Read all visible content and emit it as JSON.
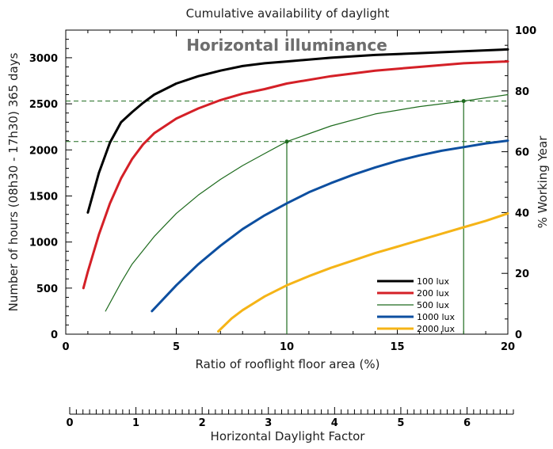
{
  "chart_data": {
    "type": "line",
    "title": "Cumulative availability of daylight",
    "annotation": "Horizontal illuminance",
    "xlabel": "Ratio of rooflight floor area (%)",
    "ylabel_left": "Number of hours (08h30 - 17h30) 365 days",
    "ylabel_right": "% Working Year",
    "secondary_xlabel": "Horizontal Daylight Factor",
    "xlim": [
      0,
      20
    ],
    "ylim_left": [
      0,
      3300
    ],
    "ylim_right": [
      0,
      100
    ],
    "secondary_xlim": [
      0,
      6.7
    ],
    "x_ticks": [
      "0",
      "5",
      "10",
      "15",
      "20"
    ],
    "y_ticks_left": [
      "0",
      "500",
      "1000",
      "1500",
      "2000",
      "2500",
      "3000"
    ],
    "y_ticks_right": [
      "0",
      "20",
      "40",
      "60",
      "80",
      "100"
    ],
    "secondary_x_ticks": [
      "0",
      "1",
      "2",
      "3",
      "4",
      "5",
      "6"
    ],
    "grid": false,
    "legend_position": "lower-right",
    "series": [
      {
        "name": "100 lux",
        "color": "#000000",
        "width": 3,
        "x": [
          1,
          1.5,
          2,
          2.5,
          3,
          3.5,
          4,
          5,
          6,
          7,
          8,
          9,
          10,
          12,
          14,
          16,
          18,
          20
        ],
        "y": [
          1320,
          1750,
          2080,
          2300,
          2410,
          2510,
          2600,
          2720,
          2800,
          2860,
          2910,
          2940,
          2960,
          3000,
          3030,
          3050,
          3070,
          3090
        ]
      },
      {
        "name": "200 lux",
        "color": "#d42027",
        "width": 3,
        "x": [
          0.8,
          1,
          1.5,
          2,
          2.5,
          3,
          3.5,
          4,
          5,
          6,
          7,
          8,
          9,
          10,
          12,
          14,
          16,
          18,
          20
        ],
        "y": [
          500,
          680,
          1080,
          1420,
          1690,
          1900,
          2060,
          2180,
          2340,
          2450,
          2540,
          2610,
          2660,
          2720,
          2800,
          2860,
          2900,
          2940,
          2960
        ]
      },
      {
        "name": "500 lux",
        "color": "#1e6b1e",
        "width": 1.2,
        "x": [
          1.8,
          2.5,
          3,
          4,
          5,
          6,
          7,
          8,
          9,
          10,
          12,
          14,
          16,
          18,
          20
        ],
        "y": [
          250,
          560,
          760,
          1060,
          1310,
          1510,
          1680,
          1830,
          1960,
          2090,
          2260,
          2390,
          2470,
          2530,
          2600
        ]
      },
      {
        "name": "1000 lux",
        "color": "#0d4fa0",
        "width": 3,
        "x": [
          3.9,
          5,
          6,
          7,
          8,
          9,
          10,
          11,
          12,
          13,
          14,
          15,
          16,
          17,
          18,
          19,
          20
        ],
        "y": [
          250,
          530,
          760,
          960,
          1140,
          1290,
          1420,
          1540,
          1640,
          1730,
          1810,
          1880,
          1940,
          1990,
          2030,
          2070,
          2100
        ]
      },
      {
        "name": "2000 lux",
        "color": "#f5b417",
        "width": 3,
        "x": [
          6.9,
          7.5,
          8,
          9,
          10,
          11,
          12,
          13,
          14,
          15,
          16,
          17,
          18,
          19,
          20
        ],
        "y": [
          30,
          170,
          260,
          410,
          530,
          630,
          720,
          800,
          880,
          950,
          1020,
          1090,
          1160,
          1230,
          1310
        ]
      }
    ],
    "reference_lines": [
      {
        "type": "horizontal",
        "y": 2530,
        "style": "dashed",
        "color": "#1e6b1e"
      },
      {
        "type": "horizontal",
        "y": 2090,
        "style": "dashed",
        "color": "#1e6b1e"
      },
      {
        "type": "vertical",
        "x": 10,
        "y_top": 2090,
        "color": "#1e6b1e"
      },
      {
        "type": "vertical",
        "x": 18,
        "y_top": 2530,
        "color": "#1e6b1e"
      }
    ]
  }
}
